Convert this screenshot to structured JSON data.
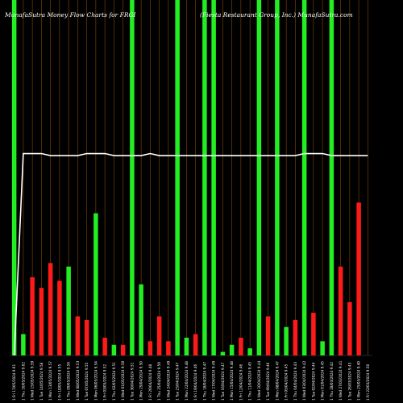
{
  "chart_data": {
    "type": "bar",
    "title": "MunafaSutra  Money Flow  Charts for FRGI",
    "subtitle": "(Fiesta Restaurant Group, Inc.) MunafaSutra.com",
    "colors": {
      "background": "#000000",
      "up": "#22ee22",
      "down": "#ff1a1a",
      "grid": "#b8600a",
      "line": "#ffffff"
    },
    "categories": [
      "Fri 17 May",
      "Thu 16 May",
      "Wed 15 May",
      "Tue 14 May",
      "Mon 13 May",
      "Fri 10 May",
      "Thu 09 May",
      "Wed 08 May",
      "Tue 07 May",
      "Mon 06 May",
      "Fri 03 May",
      "Thu 02 May",
      "Wed 01 May",
      "Tue 30 Apr",
      "Mon 29 Apr",
      "Fri 26 Apr",
      "Thu 25 Apr",
      "Wed 24 Apr",
      "Tue 23 Apr",
      "Mon 22 Apr",
      "Fri 19 Apr",
      "Thu 18 Apr",
      "Wed 17 Apr",
      "Tue 16 Apr",
      "Mon 15 Apr",
      "Fri 12 Apr",
      "Thu 11 Apr",
      "Wed 10 Apr",
      "Tue 09 Apr",
      "Mon 08 Apr",
      "Fri 05 Apr",
      "Thu 04 Apr",
      "Wed 03 Apr",
      "Tue 02 Apr",
      "Mon 01 Apr",
      "Thu 28 Mar",
      "Wed 27 Mar",
      "Tue 26 Mar",
      "Mon 25 Mar",
      "Fri 22 Mar"
    ],
    "tick_labels": [
      "1 Fri 17/05/2024 9.61",
      "1 Thu 16/05/2024 9.62",
      "1 Wed 15/05/2024 9.59",
      "1 Tue 14/05/2024 9.58",
      "1 Mon 13/05/2024 9.57",
      "1 Fri 10/05/2024 9.55",
      "1 Thu 09/05/2024 9.56",
      "1 Wed 08/05/2024 9.53",
      "1 Tue 07/05/2024 9.55",
      "1 Mon 06/05/2024 9.54",
      "1 Fri 03/05/2024 9.52",
      "1 Thu 02/05/2024 9.51",
      "1 Wed 01/05/2024 9.50",
      "1 Tue 30/04/2024 9.51",
      "1 Mon 29/04/2024 9.50",
      "1 Fri 26/04/2024 9.48",
      "1 Thu 25/04/2024 9.50",
      "1 Wed 24/04/2024 9.49",
      "1 Tue 23/04/2024 9.47",
      "1 Mon 22/04/2024 9.48",
      "1 Fri 19/04/2024 9.46",
      "1 Thu 18/04/2024 9.47",
      "1 Wed 17/04/2024 9.49",
      "1 Tue 16/04/2024 9.47",
      "1 Mon 15/04/2024 9.48",
      "1 Fri 12/04/2024 9.46",
      "1 Thu 11/04/2024 9.45",
      "1 Wed 10/04/2024 9.44",
      "1 Tue 09/04/2024 9.46",
      "1 Mon 08/04/2024 9.47",
      "1 Fri 05/04/2024 9.45",
      "1 Thu 04/04/2024 9.43",
      "1 Wed 03/04/2024 9.42",
      "1 Tue 02/04/2024 9.44",
      "1 Mon 01/04/2024 9.45",
      "1 Thu 28/03/2024 9.42",
      "1 Wed 27/03/2024 9.41",
      "1 Tue 26/03/2024 9.43",
      "1 Mon 25/03/2024 9.40",
      "1 Fri 22/03/2024 9.50"
    ],
    "series": [
      {
        "values": [
          1.0,
          0.06,
          0.22,
          0.19,
          0.26,
          0.21,
          0.25,
          0.11,
          0.1,
          0.4,
          0.05,
          0.03,
          0.03,
          1.0,
          0.2,
          0.04,
          0.11,
          0.04,
          1.0,
          0.05,
          0.06,
          1.0,
          1.0,
          0.01,
          0.03,
          0.05,
          0.02,
          1.0,
          0.11,
          1.0,
          0.08,
          0.1,
          1.0,
          0.12,
          0.04,
          1.0,
          0.25,
          0.15,
          0.43,
          0.0
        ]
      },
      {
        "values": [
          "up",
          "up",
          "down",
          "down",
          "down",
          "down",
          "up",
          "down",
          "down",
          "up",
          "down",
          "up",
          "down",
          "up",
          "up",
          "down",
          "down",
          "down",
          "up",
          "up",
          "down",
          "up",
          "up",
          "up",
          "up",
          "down",
          "up",
          "up",
          "down",
          "up",
          "up",
          "down",
          "up",
          "down",
          "up",
          "up",
          "down",
          "down",
          "down",
          "down"
        ]
      },
      {
        "values": [
          0.0,
          0.99,
          0.99,
          0.99,
          0.98,
          0.98,
          0.98,
          0.98,
          0.99,
          0.99,
          0.99,
          0.98,
          0.98,
          0.98,
          0.98,
          0.99,
          0.98,
          0.98,
          0.98,
          0.98,
          0.98,
          0.98,
          0.98,
          0.98,
          0.98,
          0.98,
          0.98,
          0.98,
          0.98,
          0.98,
          0.98,
          0.98,
          0.99,
          0.99,
          0.99,
          0.98,
          0.98,
          0.98,
          0.98,
          0.98
        ]
      }
    ],
    "ylim": [
      0,
      1
    ],
    "grid": true,
    "legend": "none"
  }
}
